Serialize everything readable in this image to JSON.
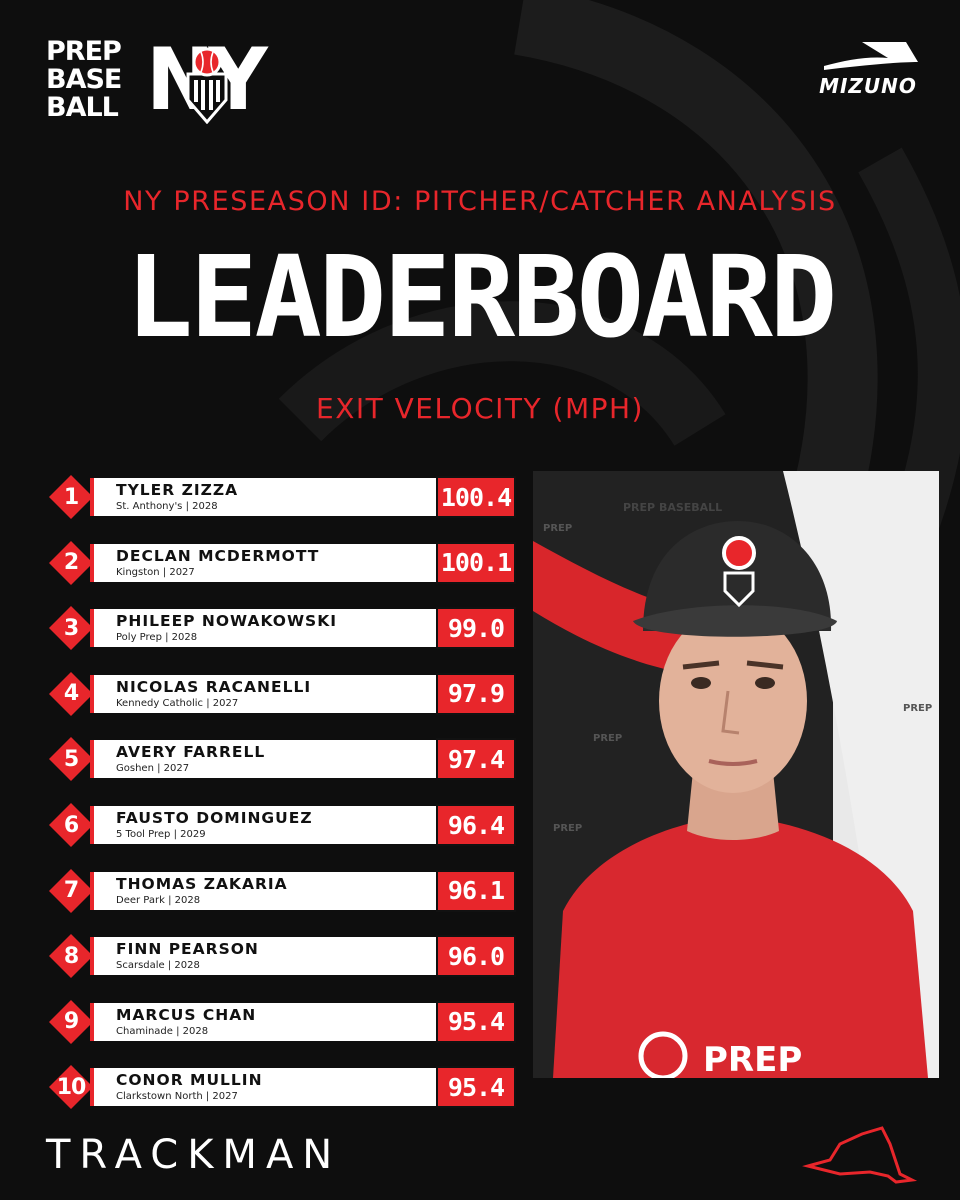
{
  "brand": {
    "logo_line1": "PREP",
    "logo_line2": "BASE",
    "logo_line3": "BALL",
    "logo_state": "NY",
    "sponsor": "MIZUNO",
    "footer_sponsor": "TRACKMAN"
  },
  "header": {
    "subtitle": "NY PRESEASON ID: PITCHER/CATCHER ANALYSIS",
    "title": "LEADERBOARD",
    "metric": "EXIT VELOCITY (MPH)"
  },
  "leaderboard": [
    {
      "rank": "1",
      "name": "TYLER ZIZZA",
      "school": "St. Anthony's | 2028",
      "value": "100.4"
    },
    {
      "rank": "2",
      "name": "DECLAN MCDERMOTT",
      "school": "Kingston | 2027",
      "value": "100.1"
    },
    {
      "rank": "3",
      "name": "PHILEEP NOWAKOWSKI",
      "school": "Poly Prep | 2028",
      "value": "99.0"
    },
    {
      "rank": "4",
      "name": "NICOLAS RACANELLI",
      "school": "Kennedy Catholic | 2027",
      "value": "97.9"
    },
    {
      "rank": "5",
      "name": "AVERY FARRELL",
      "school": "Goshen | 2027",
      "value": "97.4"
    },
    {
      "rank": "6",
      "name": "FAUSTO DOMINGUEZ",
      "school": "5 Tool Prep | 2029",
      "value": "96.4"
    },
    {
      "rank": "7",
      "name": "THOMAS ZAKARIA",
      "school": "Deer Park | 2028",
      "value": "96.1"
    },
    {
      "rank": "8",
      "name": "FINN PEARSON",
      "school": "Scarsdale | 2028",
      "value": "96.0"
    },
    {
      "rank": "9",
      "name": "MARCUS CHAN",
      "school": "Chaminade | 2028",
      "value": "95.4"
    },
    {
      "rank": "10",
      "name": "CONOR MULLIN",
      "school": "Clarkstown North | 2027",
      "value": "95.4"
    }
  ],
  "photo": {
    "backdrop_text": "PREP BASEBALL",
    "shirt_text": "PREP"
  },
  "colors": {
    "accent": "#e8262b",
    "background": "#0e0e0e"
  }
}
